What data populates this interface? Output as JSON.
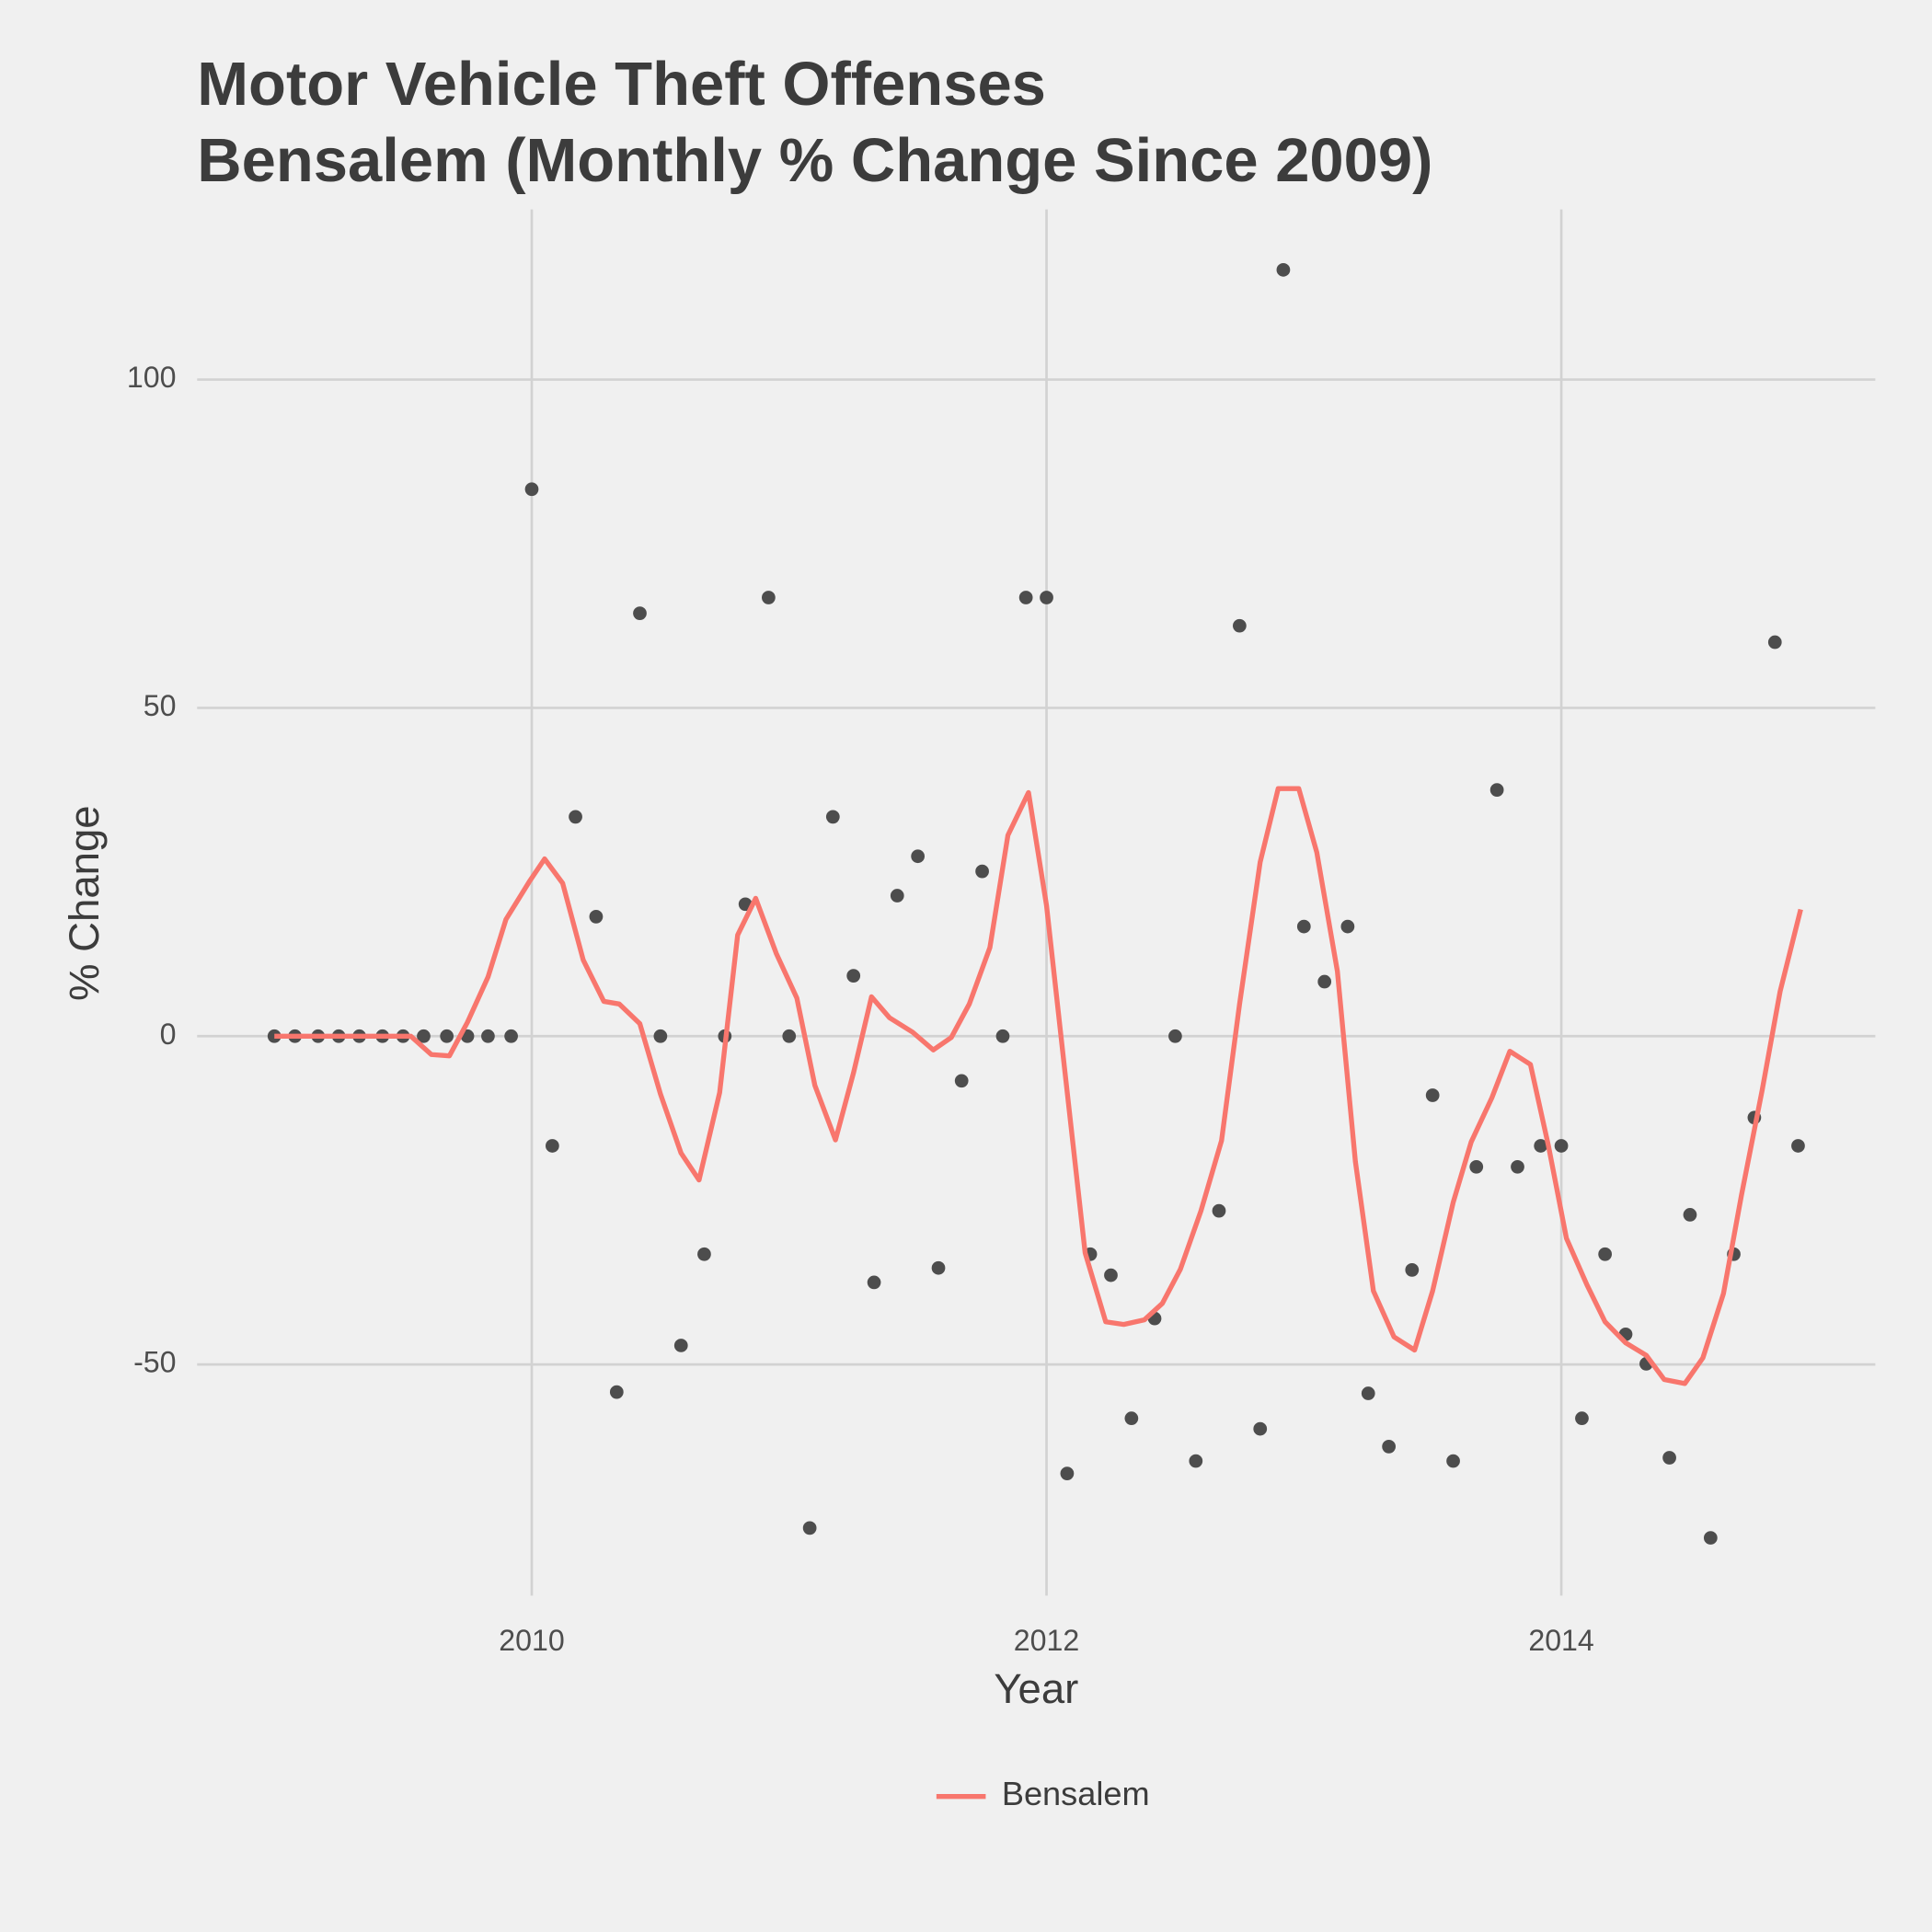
{
  "chart_data": {
    "type": "line",
    "title": "Motor Vehicle Theft Offenses",
    "subtitle": "Bensalem (Monthly % Change Since 2009)",
    "x_label": "Year",
    "y_label": "% Change",
    "xlim": [
      2008.7,
      2015.22
    ],
    "ylim": [
      -85.2,
      125.9
    ],
    "xticks": [
      2010,
      2012,
      2014
    ],
    "yticks": [
      -50,
      0,
      50,
      100
    ],
    "grid": true,
    "legend": "bottom",
    "series": [
      {
        "name": "Bensalem",
        "color": "#f8766d",
        "x": [
          2009.0,
          2009.53,
          2009.61,
          2009.68,
          2009.75,
          2009.83,
          2009.9,
          2009.99,
          2010.05,
          2010.12,
          2010.2,
          2010.28,
          2010.34,
          2010.42,
          2010.5,
          2010.58,
          2010.65,
          2010.73,
          2010.8,
          2010.87,
          2010.95,
          2011.03,
          2011.1,
          2011.18,
          2011.25,
          2011.32,
          2011.39,
          2011.48,
          2011.56,
          2011.63,
          2011.7,
          2011.78,
          2011.85,
          2011.93,
          2012.0,
          2012.07,
          2012.15,
          2012.23,
          2012.3,
          2012.38,
          2012.45,
          2012.52,
          2012.6,
          2012.68,
          2012.75,
          2012.83,
          2012.9,
          2012.98,
          2013.05,
          2013.13,
          2013.2,
          2013.27,
          2013.35,
          2013.43,
          2013.5,
          2013.58,
          2013.65,
          2013.73,
          2013.8,
          2013.88,
          2013.95,
          2014.02,
          2014.1,
          2014.17,
          2014.25,
          2014.33,
          2014.4,
          2014.48,
          2014.55,
          2014.63,
          2014.7,
          2014.78,
          2014.85,
          2014.93
        ],
        "values": [
          0,
          0,
          -2.8,
          -3.0,
          2.1,
          9.0,
          17.8,
          23.5,
          27.0,
          23.3,
          11.6,
          5.3,
          4.9,
          1.9,
          -8.8,
          -17.8,
          -21.9,
          -8.6,
          15.4,
          21.0,
          12.6,
          5.8,
          -7.5,
          -15.8,
          -5.6,
          6.0,
          2.8,
          0.6,
          -2.1,
          -0.2,
          4.9,
          13.5,
          30.6,
          37.1,
          19.9,
          -4.9,
          -33.0,
          -43.5,
          -43.9,
          -43.2,
          -40.7,
          -35.5,
          -26.6,
          -15.9,
          4.9,
          26.5,
          37.7,
          37.7,
          28.0,
          9.9,
          -19.1,
          -38.8,
          -45.8,
          -47.8,
          -38.8,
          -25.3,
          -16.1,
          -9.4,
          -2.3,
          -4.3,
          -16.7,
          -30.8,
          -37.9,
          -43.5,
          -46.7,
          -48.6,
          -52.3,
          -52.9,
          -49.0,
          -39.2,
          -24.2,
          -8.3,
          6.8,
          19.3
        ]
      }
    ],
    "points": {
      "color": "#4d4d4d",
      "x": [
        2009.0,
        2009.08,
        2009.17,
        2009.25,
        2009.33,
        2009.42,
        2009.5,
        2009.58,
        2009.67,
        2009.75,
        2009.83,
        2009.92,
        2010.0,
        2010.08,
        2010.17,
        2010.25,
        2010.33,
        2010.42,
        2010.5,
        2010.58,
        2010.67,
        2010.75,
        2010.83,
        2010.92,
        2011.0,
        2011.08,
        2011.17,
        2011.25,
        2011.33,
        2011.42,
        2011.5,
        2011.58,
        2011.67,
        2011.75,
        2011.83,
        2011.92,
        2012.0,
        2012.08,
        2012.17,
        2012.25,
        2012.33,
        2012.42,
        2012.5,
        2012.58,
        2012.67,
        2012.75,
        2012.83,
        2012.92,
        2013.0,
        2013.08,
        2013.17,
        2013.25,
        2013.33,
        2013.42,
        2013.5,
        2013.58,
        2013.67,
        2013.75,
        2013.83,
        2013.92,
        2014.0,
        2014.08,
        2014.17,
        2014.25,
        2014.33,
        2014.42,
        2014.5,
        2014.58,
        2014.67,
        2014.75,
        2014.83,
        2014.92
      ],
      "values": [
        0,
        0,
        0,
        0,
        0,
        0,
        0,
        0,
        0,
        0,
        0,
        0,
        83.3,
        -16.7,
        33.4,
        18.2,
        -54.2,
        64.4,
        0,
        -47.1,
        -33.2,
        0,
        20.1,
        66.8,
        0,
        -74.9,
        33.4,
        9.2,
        -37.5,
        21.4,
        27.4,
        -35.3,
        -6.8,
        25.1,
        0,
        66.8,
        66.8,
        -66.6,
        -33.2,
        -36.4,
        -58.2,
        -43.0,
        0,
        -64.7,
        -26.6,
        62.5,
        -59.8,
        116.7,
        16.7,
        8.3,
        16.7,
        -54.4,
        -62.5,
        -35.6,
        -9.0,
        -64.7,
        -19.9,
        37.5,
        -19.9,
        -16.7,
        -16.7,
        -58.2,
        -33.2,
        -45.4,
        -49.9,
        -64.2,
        -27.2,
        -76.4,
        -33.2,
        -12.4,
        60.0,
        -16.7
      ]
    }
  }
}
